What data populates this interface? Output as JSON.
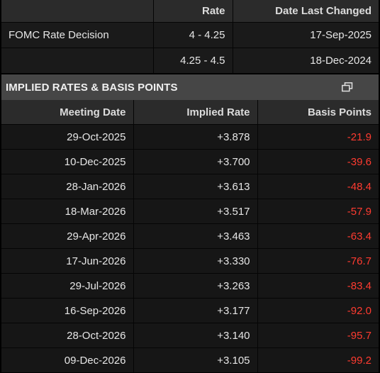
{
  "rates_table": {
    "columns": [
      "",
      "Rate",
      "Date Last Changed"
    ],
    "rows": [
      {
        "label": "FOMC Rate Decision",
        "rate": "4 - 4.25",
        "date": "17-Sep-2025"
      },
      {
        "label": "",
        "rate": "4.25 - 4.5",
        "date": "18-Dec-2024"
      }
    ]
  },
  "section": {
    "title": "IMPLIED RATES & BASIS POINTS",
    "icon": "popout-icon"
  },
  "implied_table": {
    "columns": [
      "Meeting Date",
      "Implied Rate",
      "Basis Points"
    ],
    "rows": [
      {
        "date": "29-Oct-2025",
        "rate": "+3.878",
        "bps": "-21.9"
      },
      {
        "date": "10-Dec-2025",
        "rate": "+3.700",
        "bps": "-39.6"
      },
      {
        "date": "28-Jan-2026",
        "rate": "+3.613",
        "bps": "-48.4"
      },
      {
        "date": "18-Mar-2026",
        "rate": "+3.517",
        "bps": "-57.9"
      },
      {
        "date": "29-Apr-2026",
        "rate": "+3.463",
        "bps": "-63.4"
      },
      {
        "date": "17-Jun-2026",
        "rate": "+3.330",
        "bps": "-76.7"
      },
      {
        "date": "29-Jul-2026",
        "rate": "+3.263",
        "bps": "-83.4"
      },
      {
        "date": "16-Sep-2026",
        "rate": "+3.177",
        "bps": "-92.0"
      },
      {
        "date": "28-Oct-2026",
        "rate": "+3.140",
        "bps": "-95.7"
      },
      {
        "date": "09-Dec-2026",
        "rate": "+3.105",
        "bps": "-99.2"
      }
    ]
  },
  "colors": {
    "negative": "#ff3b30",
    "header_bg": "#2b2b2b",
    "section_bg": "#464646",
    "row_bg": "#161616"
  }
}
